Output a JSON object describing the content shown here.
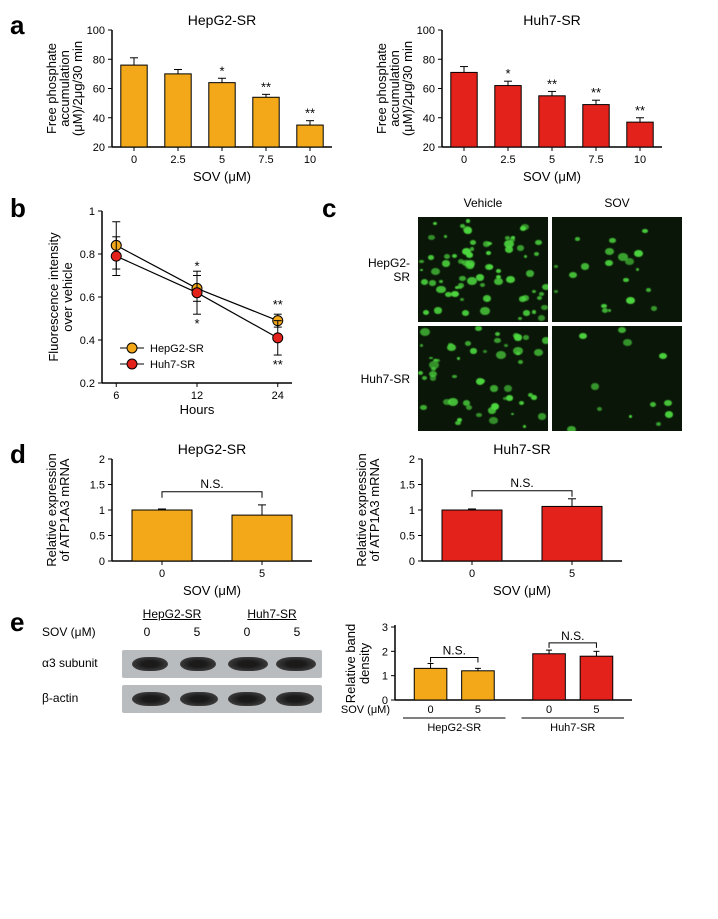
{
  "panel_labels": {
    "a": "a",
    "b": "b",
    "c": "c",
    "d": "d",
    "e": "e"
  },
  "colors": {
    "orange": "#f2a818",
    "red": "#e4221c",
    "stroke": "#000000",
    "green": "#4dd83f",
    "dark": "#0a1608",
    "gel_bg": "#b9bcbf"
  },
  "panel_a": {
    "ylabel_line1": "Free phosphate",
    "ylabel_line2": "accumulation",
    "ylabel_line3": "(μM)/2μg/30 min",
    "xlabel": "SOV (μM)",
    "ylim": [
      20,
      100
    ],
    "yticks": [
      20,
      40,
      60,
      80,
      100
    ],
    "categories": [
      "0",
      "2.5",
      "5",
      "7.5",
      "10"
    ],
    "charts": [
      {
        "title": "HepG2-SR",
        "color": "#f2a818",
        "values": [
          76,
          70,
          64,
          54,
          35
        ],
        "err": [
          5,
          3,
          3,
          2,
          3
        ],
        "sig": [
          "",
          "",
          "*",
          "**",
          "**"
        ]
      },
      {
        "title": "Huh7-SR",
        "color": "#e4221c",
        "values": [
          71,
          62,
          55,
          49,
          37
        ],
        "err": [
          4,
          3,
          3,
          3,
          3
        ],
        "sig": [
          "",
          "*",
          "**",
          "**",
          "**"
        ]
      }
    ]
  },
  "panel_b": {
    "ylabel_line1": "Fluorescence intensity",
    "ylabel_line2": "over vehicle",
    "xlabel": "Hours",
    "xticks": [
      6,
      12,
      24
    ],
    "ylim": [
      0.2,
      1.0
    ],
    "yticks": [
      0.2,
      0.4,
      0.6,
      0.8,
      1
    ],
    "series": [
      {
        "name": "HepG2-SR",
        "color": "#f2a818",
        "values": [
          0.84,
          0.64,
          0.49
        ],
        "err": [
          0.11,
          0.06,
          0.03
        ],
        "sig": [
          "",
          "*",
          "**"
        ],
        "sig_pos": "above"
      },
      {
        "name": "Huh7-SR",
        "color": "#e4221c",
        "values": [
          0.79,
          0.62,
          0.41
        ],
        "err": [
          0.09,
          0.1,
          0.08
        ],
        "sig": [
          "",
          "*",
          "**"
        ],
        "sig_pos": "below"
      }
    ]
  },
  "panel_c": {
    "col_labels": [
      "Vehicle",
      "SOV"
    ],
    "row_labels": [
      "HepG2-SR",
      "Huh7-SR"
    ],
    "density": [
      [
        75,
        20
      ],
      [
        55,
        12
      ]
    ]
  },
  "panel_d": {
    "ylabel_line1": "Relative expression",
    "ylabel_line2": "of ATP1A3 mRNA",
    "xlabel": "SOV (μM)",
    "ylim": [
      0,
      2
    ],
    "yticks": [
      0,
      0.5,
      1,
      1.5,
      2
    ],
    "categories": [
      "0",
      "5"
    ],
    "ns_label": "N.S.",
    "charts": [
      {
        "title": "HepG2-SR",
        "color": "#f2a818",
        "values": [
          1.0,
          0.9
        ],
        "err": [
          0.02,
          0.2
        ]
      },
      {
        "title": "Huh7-SR",
        "color": "#e4221c",
        "values": [
          1.0,
          1.07
        ],
        "err": [
          0.02,
          0.15
        ]
      }
    ]
  },
  "panel_e": {
    "group_labels": [
      "HepG2-SR",
      "Huh7-SR"
    ],
    "sov_label": "SOV (μM)",
    "sov_values": [
      "0",
      "5",
      "0",
      "5"
    ],
    "row1_label": "α3 subunit",
    "row2_label": "β-actin",
    "chart": {
      "ylabel_line1": "Relative band",
      "ylabel_line2": "density",
      "xlabel_prefix": "SOV (μM)",
      "ylim": [
        0,
        3
      ],
      "yticks": [
        0,
        1,
        2,
        3
      ],
      "ns_label": "N.S.",
      "groups": [
        {
          "name": "HepG2-SR",
          "color": "#f2a818",
          "cats": [
            "0",
            "5"
          ],
          "vals": [
            1.3,
            1.2
          ],
          "err": [
            0.2,
            0.1
          ]
        },
        {
          "name": "Huh7-SR",
          "color": "#e4221c",
          "cats": [
            "0",
            "5"
          ],
          "vals": [
            1.9,
            1.8
          ],
          "err": [
            0.15,
            0.2
          ]
        }
      ]
    }
  }
}
